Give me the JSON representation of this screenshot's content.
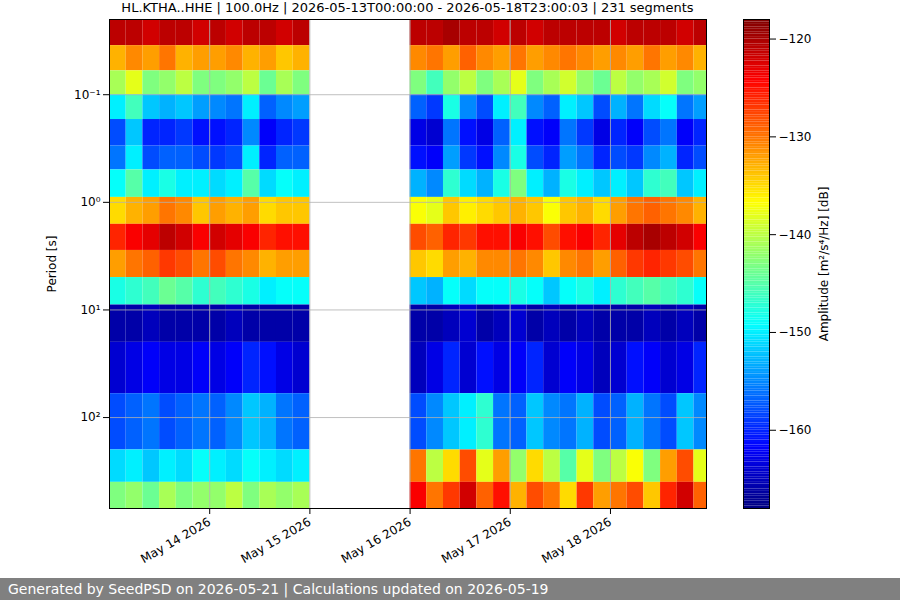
{
  "chart_data": {
    "type": "heatmap",
    "title": "HL.KTHA..HHE | 100.0Hz | 2026-05-13T00:00:00 - 2026-05-18T23:00:03 | 231 segments",
    "caption": "Generated by SeedPSD on 2026-05-21 | Calculations updated on 2026-05-19",
    "y_label": "Period [s]",
    "log": "y",
    "grid": true,
    "xlim": [
      "2026-05-13T00:00:00",
      "2026-05-18T23:00:03"
    ],
    "xticks": [
      {
        "value": "2026-05-14T00:00:00",
        "label": "May 14 2026"
      },
      {
        "value": "2026-05-15T00:00:00",
        "label": "May 15 2026"
      },
      {
        "value": "2026-05-16T00:00:00",
        "label": "May 16 2026"
      },
      {
        "value": "2026-05-17T00:00:00",
        "label": "May 17 2026"
      },
      {
        "value": "2026-05-18T00:00:00",
        "label": "May 18 2026"
      }
    ],
    "ylim": [
      0.02,
      700
    ],
    "yticks": [
      {
        "value": 0.1,
        "label": "10⁻¹"
      },
      {
        "value": 1,
        "label": "10⁰"
      },
      {
        "value": 10,
        "label": "10¹"
      },
      {
        "value": 100,
        "label": "10²"
      }
    ],
    "x": [
      "2026-05-13T00:00:00",
      "2026-05-13T04:00:00",
      "2026-05-13T08:00:00",
      "2026-05-13T12:00:00",
      "2026-05-13T16:00:00",
      "2026-05-13T20:00:00",
      "2026-05-14T00:00:00",
      "2026-05-14T04:00:00",
      "2026-05-14T08:00:00",
      "2026-05-14T12:00:00",
      "2026-05-14T16:00:00",
      "2026-05-14T20:00:00",
      "2026-05-15T00:00:00",
      "2026-05-15T04:00:00",
      "2026-05-15T08:00:00",
      "2026-05-15T12:00:00",
      "2026-05-15T16:00:00",
      "2026-05-15T20:00:00",
      "2026-05-16T00:00:00",
      "2026-05-16T04:00:00",
      "2026-05-16T08:00:00",
      "2026-05-16T12:00:00",
      "2026-05-16T16:00:00",
      "2026-05-16T20:00:00",
      "2026-05-17T00:00:00",
      "2026-05-17T04:00:00",
      "2026-05-17T08:00:00",
      "2026-05-17T12:00:00",
      "2026-05-17T16:00:00",
      "2026-05-17T20:00:00",
      "2026-05-18T00:00:00",
      "2026-05-18T04:00:00",
      "2026-05-18T08:00:00",
      "2026-05-18T12:00:00",
      "2026-05-18T16:00:00",
      "2026-05-18T20:00:00"
    ],
    "y_edges": [
      0.02,
      0.035,
      0.06,
      0.1,
      0.17,
      0.3,
      0.5,
      0.9,
      1.6,
      2.8,
      5,
      9,
      20,
      60,
      200,
      400,
      700
    ],
    "values": [
      [
        -121,
        -121,
        -122,
        -121,
        -121,
        -122,
        -121,
        -122,
        -121,
        -121,
        -122,
        -121,
        null,
        null,
        null,
        null,
        null,
        null,
        -121,
        -121,
        -120,
        -121,
        -121,
        -122,
        -121,
        -122,
        -121,
        -121,
        -121,
        -121,
        -122,
        -121,
        -121,
        -121,
        -122,
        -121
      ],
      [
        -133,
        -131,
        -132,
        -130,
        -133,
        -132,
        -132,
        -131,
        -133,
        -132,
        -134,
        -133,
        null,
        null,
        null,
        null,
        null,
        null,
        -131,
        -130,
        -132,
        -129,
        -131,
        -132,
        -130,
        -132,
        -131,
        -130,
        -131,
        -132,
        -131,
        -132,
        -130,
        -132,
        -131,
        -133
      ],
      [
        -141,
        -138,
        -143,
        -142,
        -140,
        -143,
        -143,
        -142,
        -140,
        -144,
        -141,
        -143,
        null,
        null,
        null,
        null,
        null,
        null,
        -143,
        -146,
        -142,
        -140,
        -143,
        -141,
        -138,
        -143,
        -141,
        -139,
        -142,
        -144,
        -140,
        -142,
        -141,
        -139,
        -143,
        -142
      ],
      [
        -150,
        -146,
        -152,
        -153,
        -152,
        -154,
        -155,
        -156,
        -150,
        -157,
        -155,
        -154,
        null,
        null,
        null,
        null,
        null,
        null,
        -157,
        -159,
        -148,
        -155,
        -158,
        -150,
        -146,
        -155,
        -157,
        -150,
        -152,
        -158,
        -153,
        -156,
        -151,
        -149,
        -156,
        -154
      ],
      [
        -158,
        -152,
        -160,
        -160,
        -159,
        -161,
        -161,
        -160,
        -155,
        -162,
        -160,
        -159,
        null,
        null,
        null,
        null,
        null,
        null,
        -163,
        -164,
        -156,
        -161,
        -163,
        -157,
        -150,
        -161,
        -162,
        -156,
        -159,
        -163,
        -160,
        -162,
        -158,
        -156,
        -162,
        -160
      ],
      [
        -156,
        -150,
        -158,
        -157,
        -157,
        -158,
        -159,
        -158,
        -150,
        -160,
        -157,
        -157,
        null,
        null,
        null,
        null,
        null,
        null,
        -161,
        -162,
        -154,
        -159,
        -161,
        -155,
        -148,
        -158,
        -160,
        -154,
        -156,
        -160,
        -158,
        -159,
        -155,
        -153,
        -160,
        -158
      ],
      [
        -149,
        -145,
        -150,
        -148,
        -150,
        -150,
        -151,
        -150,
        -145,
        -151,
        -149,
        -150,
        null,
        null,
        null,
        null,
        null,
        null,
        -153,
        -155,
        -147,
        -151,
        -153,
        -148,
        -143,
        -150,
        -153,
        -148,
        -150,
        -152,
        -150,
        -152,
        -147,
        -146,
        -152,
        -150
      ],
      [
        -135,
        -133,
        -132,
        -130,
        -131,
        -134,
        -132,
        -133,
        -132,
        -135,
        -134,
        -134,
        null,
        null,
        null,
        null,
        null,
        null,
        -137,
        -138,
        -134,
        -136,
        -135,
        -134,
        -133,
        -134,
        -137,
        -134,
        -133,
        -135,
        -132,
        -130,
        -129,
        -130,
        -131,
        -133
      ],
      [
        -126,
        -124,
        -123,
        -121,
        -122,
        -124,
        -122,
        -123,
        -124,
        -126,
        -125,
        -125,
        null,
        null,
        null,
        null,
        null,
        null,
        -128,
        -129,
        -126,
        -127,
        -125,
        -125,
        -124,
        -125,
        -128,
        -125,
        -124,
        -126,
        -123,
        -121,
        -120,
        -121,
        -122,
        -124
      ],
      [
        -132,
        -130,
        -129,
        -127,
        -128,
        -130,
        -128,
        -130,
        -131,
        -133,
        -132,
        -132,
        null,
        null,
        null,
        null,
        null,
        null,
        -134,
        -135,
        -132,
        -133,
        -131,
        -131,
        -130,
        -131,
        -134,
        -131,
        -130,
        -132,
        -129,
        -127,
        -126,
        -127,
        -128,
        -130
      ],
      [
        -148,
        -147,
        -146,
        -144,
        -145,
        -147,
        -146,
        -147,
        -148,
        -150,
        -149,
        -149,
        null,
        null,
        null,
        null,
        null,
        null,
        -152,
        -153,
        -149,
        -151,
        -149,
        -149,
        -148,
        -149,
        -152,
        -149,
        -148,
        -150,
        -147,
        -146,
        -145,
        -146,
        -147,
        -149
      ],
      [
        -166,
        -166,
        -165,
        -166,
        -166,
        -166,
        -166,
        -165,
        -166,
        -166,
        -166,
        -166,
        null,
        null,
        null,
        null,
        null,
        null,
        -166,
        -166,
        -165,
        -164,
        -166,
        -165,
        -164,
        -166,
        -165,
        -166,
        -165,
        -166,
        -166,
        -166,
        -165,
        -166,
        -165,
        -166
      ],
      [
        -164,
        -163,
        -162,
        -163,
        -163,
        -162,
        -163,
        -162,
        -160,
        -161,
        -163,
        -164,
        null,
        null,
        null,
        null,
        null,
        null,
        -165,
        -163,
        -160,
        -164,
        -161,
        -163,
        -162,
        -160,
        -164,
        -162,
        -163,
        -165,
        -164,
        -161,
        -162,
        -164,
        -163,
        -160
      ],
      [
        -158,
        -157,
        -156,
        -158,
        -157,
        -156,
        -157,
        -155,
        -152,
        -153,
        -156,
        -157,
        null,
        null,
        null,
        null,
        null,
        null,
        -158,
        -155,
        -152,
        -150,
        -147,
        -156,
        -157,
        -152,
        -155,
        -156,
        -153,
        -158,
        -157,
        -153,
        -156,
        -158,
        -152,
        -155
      ],
      [
        -151,
        -150,
        -152,
        -150,
        -151,
        -149,
        -150,
        -151,
        -149,
        -150,
        -151,
        -150,
        null,
        null,
        null,
        null,
        null,
        null,
        -130,
        -140,
        -135,
        -128,
        -138,
        -132,
        -142,
        -135,
        -140,
        -145,
        -138,
        -143,
        -140,
        -137,
        -143,
        -132,
        -128,
        -138
      ],
      [
        -143,
        -142,
        -144,
        -141,
        -143,
        -142,
        -142,
        -140,
        -143,
        -141,
        -142,
        -141,
        null,
        null,
        null,
        null,
        null,
        null,
        -124,
        -130,
        -127,
        -122,
        -129,
        -125,
        -133,
        -128,
        -130,
        -135,
        -127,
        -132,
        -130,
        -128,
        -134,
        -126,
        -122,
        -129
      ]
    ],
    "colorbar": {
      "label": "Amplitude [m²/s⁴/Hz] [dB]",
      "range": [
        -168,
        -118
      ],
      "ticks": [
        {
          "value": -160,
          "label": "−160"
        },
        {
          "value": -150,
          "label": "−150"
        },
        {
          "value": -140,
          "label": "−140"
        },
        {
          "value": -130,
          "label": "−130"
        },
        {
          "value": -120,
          "label": "−120"
        }
      ]
    }
  }
}
